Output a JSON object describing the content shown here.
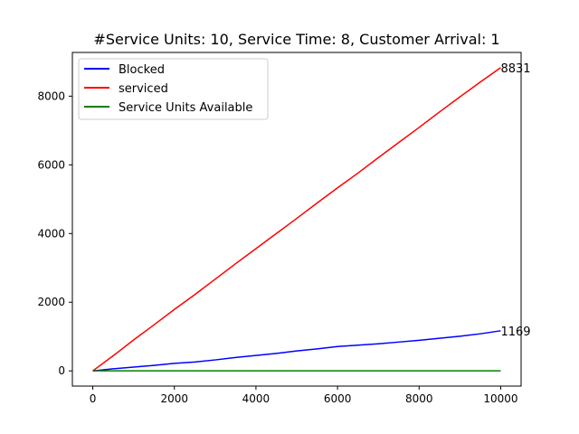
{
  "chart_data": {
    "type": "line",
    "title": "#Service Units: 10, Service Time: 8, Customer Arrival: 1",
    "xlabel": "",
    "ylabel": "",
    "xlim": [
      -500,
      10500
    ],
    "ylim": [
      -442,
      9273
    ],
    "xticks": [
      0,
      2000,
      4000,
      6000,
      8000,
      10000
    ],
    "yticks": [
      0,
      2000,
      4000,
      6000,
      8000
    ],
    "grid": false,
    "legend_position": "top-left",
    "series": [
      {
        "name": "Blocked",
        "color": "#0000ff",
        "x": [
          0,
          500,
          1000,
          1500,
          2000,
          2500,
          3000,
          3500,
          4000,
          4500,
          5000,
          5500,
          6000,
          6500,
          7000,
          7500,
          8000,
          8500,
          9000,
          9500,
          10000
        ],
        "y": [
          0,
          60,
          110,
          160,
          220,
          260,
          320,
          390,
          450,
          510,
          580,
          640,
          710,
          750,
          790,
          840,
          890,
          950,
          1010,
          1080,
          1169
        ]
      },
      {
        "name": "serviced",
        "color": "#ff0000",
        "x": [
          0,
          500,
          1000,
          1500,
          2000,
          2500,
          3000,
          3500,
          4000,
          4500,
          5000,
          5500,
          6000,
          6500,
          7000,
          7500,
          8000,
          8500,
          9000,
          9500,
          10000
        ],
        "y": [
          0,
          440,
          900,
          1340,
          1790,
          2220,
          2670,
          3120,
          3560,
          4000,
          4440,
          4890,
          5330,
          5760,
          6210,
          6650,
          7090,
          7540,
          7980,
          8410,
          8831
        ]
      },
      {
        "name": "Service Units Available",
        "color": "#008000",
        "x": [
          0,
          500,
          1000,
          1500,
          2000,
          2500,
          3000,
          3500,
          4000,
          4500,
          5000,
          5500,
          6000,
          6500,
          7000,
          7500,
          8000,
          8500,
          9000,
          9500,
          10000
        ],
        "y": [
          2,
          1,
          2,
          1,
          2,
          1,
          2,
          1,
          2,
          1,
          2,
          1,
          2,
          1,
          2,
          1,
          2,
          1,
          2,
          1,
          1
        ]
      }
    ],
    "annotations": [
      {
        "text": "8831",
        "x": 10000,
        "y": 8831
      },
      {
        "text": "1169",
        "x": 10000,
        "y": 1169
      }
    ]
  }
}
